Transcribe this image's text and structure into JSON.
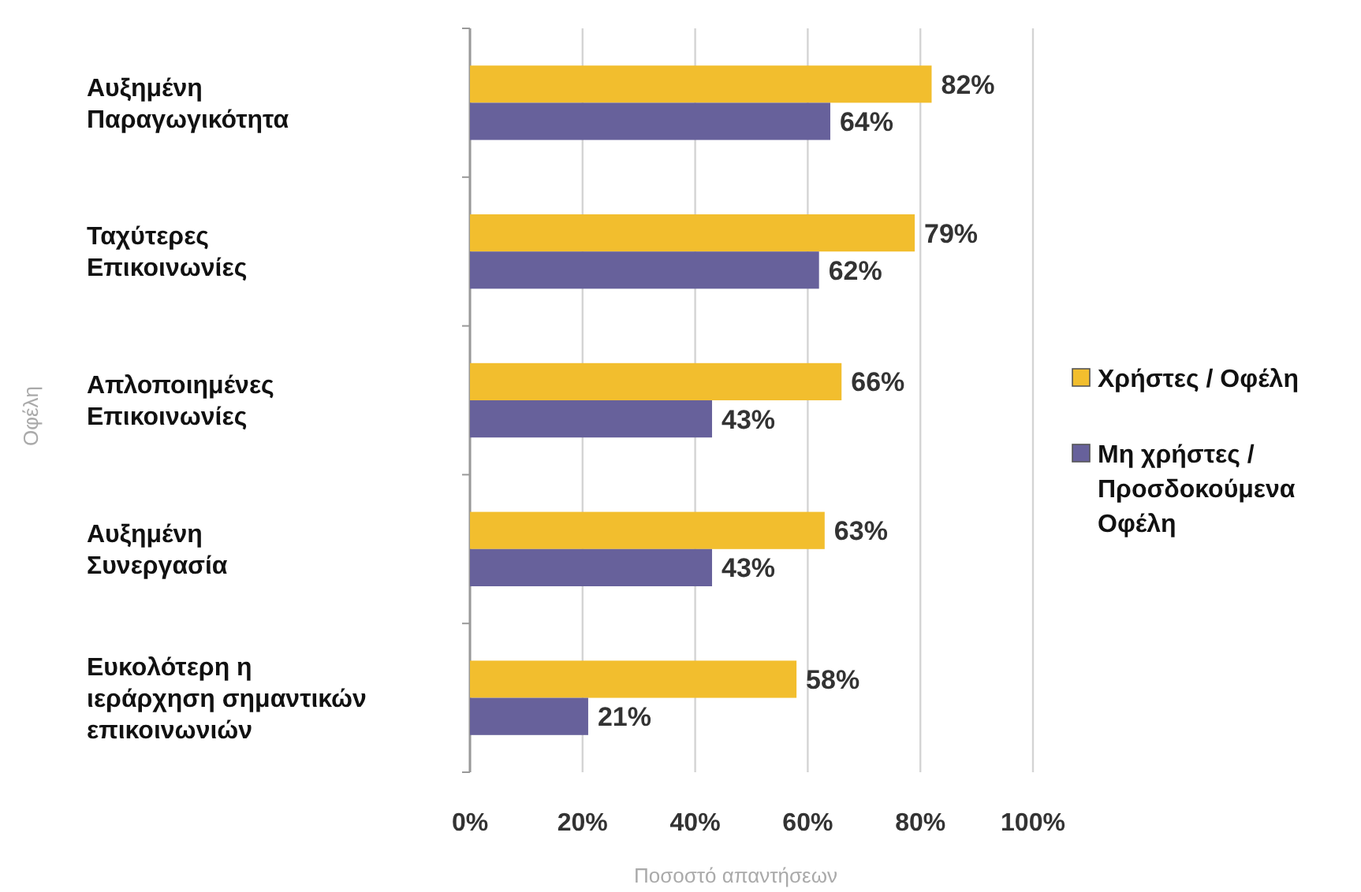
{
  "chart_data": {
    "type": "bar",
    "orientation": "horizontal",
    "xlabel": "Ποσοστό απαντήσεων",
    "ylabel": "Οφέλη",
    "categories": [
      "Αυξημένη\nΠαραγωγικότητα",
      "Ταχύτερες\nΕπικοινωνίες",
      "Απλοποιημένες\nΕπικοινωνίες",
      "Αυξημένη\nΣυνεργασία",
      "Ευκολότερη η\nιεράρχηση σημαντικών\nεπικοινωνιών"
    ],
    "series": [
      {
        "name": "Χρήστες / Οφέλη",
        "color": "#f2be2e",
        "values": [
          82,
          79,
          66,
          63,
          58
        ],
        "value_labels": [
          "82%",
          "79%",
          "66%",
          "63%",
          "58%"
        ]
      },
      {
        "name": "Μη χρήστες /\nΠροσδοκούμενα\nΟφέλη",
        "color": "#67619b",
        "values": [
          64,
          62,
          43,
          43,
          21
        ],
        "value_labels": [
          "64%",
          "62%",
          "43%",
          "43%",
          "21%"
        ]
      }
    ],
    "xlim": [
      0,
      100
    ],
    "xticks": [
      {
        "value": 0,
        "label": "0%"
      },
      {
        "value": 20,
        "label": "20%"
      },
      {
        "value": 40,
        "label": "40%"
      },
      {
        "value": 60,
        "label": "60%"
      },
      {
        "value": 80,
        "label": "80%"
      },
      {
        "value": 100,
        "label": "100%"
      }
    ],
    "grid": "x",
    "legend": "right"
  }
}
